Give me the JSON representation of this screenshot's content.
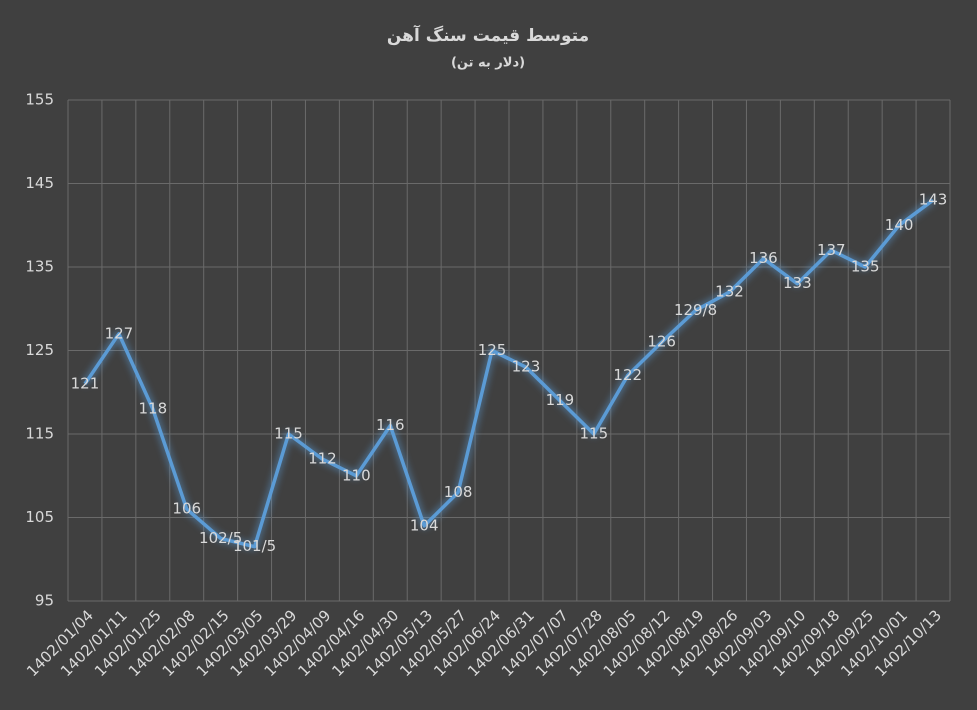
{
  "chart_data": {
    "type": "line",
    "title": "متوسط قیمت سنگ آهن",
    "subtitle": "(دلار به تن)",
    "categories": [
      "1402/01/04",
      "1402/01/11",
      "1402/01/25",
      "1402/02/08",
      "1402/02/15",
      "1402/03/05",
      "1402/03/29",
      "1402/04/09",
      "1402/04/16",
      "1402/04/30",
      "1402/05/13",
      "1402/05/27",
      "1402/06/24",
      "1402/06/31",
      "1402/07/07",
      "1402/07/28",
      "1402/08/05",
      "1402/08/12",
      "1402/08/19",
      "1402/08/26",
      "1402/09/03",
      "1402/09/10",
      "1402/09/18",
      "1402/09/25",
      "1402/10/01",
      "1402/10/13"
    ],
    "values": [
      121,
      127,
      118,
      106,
      102.5,
      101.5,
      115,
      112,
      110,
      116,
      104,
      108,
      125,
      123,
      119,
      115,
      122,
      126,
      129.8,
      132,
      136,
      133,
      137,
      135,
      140,
      143
    ],
    "value_labels": [
      "121",
      "127",
      "118",
      "106",
      "102/5",
      "101/5",
      "115",
      "112",
      "110",
      "116",
      "104",
      "108",
      "125",
      "123",
      "119",
      "115",
      "122",
      "126",
      "129/8",
      "132",
      "136",
      "133",
      "137",
      "135",
      "140",
      "143"
    ],
    "color": "#5b9bd5",
    "ylim": [
      95,
      155
    ],
    "yticks": [
      95,
      105,
      115,
      125,
      135,
      145,
      155
    ],
    "grid": true
  }
}
